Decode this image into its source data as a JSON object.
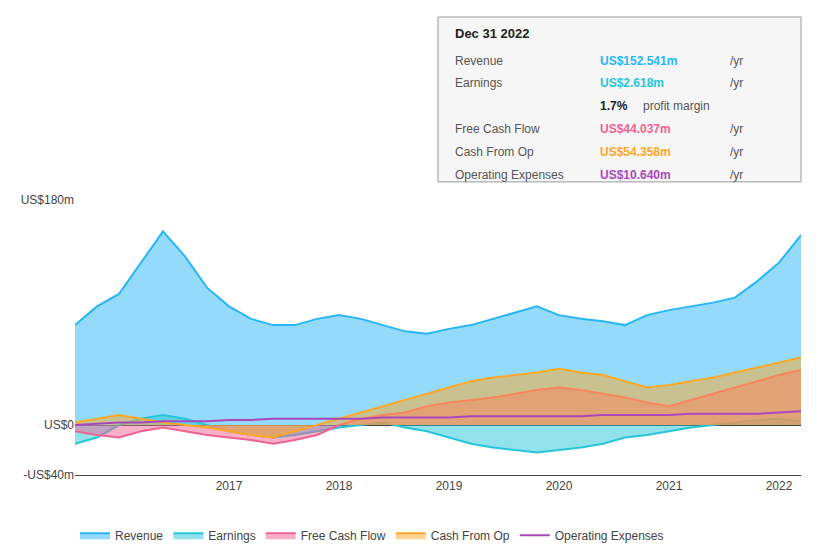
{
  "chart_data": {
    "type": "line",
    "categories": [
      null,
      null,
      null,
      null,
      null,
      null,
      null,
      "2017",
      null,
      null,
      null,
      null,
      "2018",
      null,
      null,
      null,
      null,
      "2019",
      null,
      null,
      null,
      null,
      "2020",
      null,
      null,
      null,
      null,
      "2021",
      null,
      null,
      null,
      null,
      "2022",
      null
    ],
    "series": [
      {
        "name": "Revenue",
        "color": "#29b6f6",
        "type": "area",
        "values": [
          80,
          95,
          105,
          130,
          155,
          135,
          110,
          95,
          85,
          80,
          80,
          85,
          88,
          85,
          80,
          75,
          73,
          77,
          80,
          85,
          90,
          95,
          88,
          85,
          83,
          80,
          88,
          92,
          95,
          98,
          102,
          115,
          130,
          152
        ]
      },
      {
        "name": "Earnings",
        "color": "#26c6da",
        "type": "area",
        "values": [
          -15,
          -10,
          0,
          5,
          8,
          5,
          0,
          -5,
          -8,
          -10,
          -8,
          -5,
          -2,
          0,
          2,
          -2,
          -5,
          -10,
          -15,
          -18,
          -20,
          -22,
          -20,
          -18,
          -15,
          -10,
          -8,
          -5,
          -2,
          0,
          2,
          4,
          5,
          3
        ]
      },
      {
        "name": "Free Cash Flow",
        "color": "#f06292",
        "type": "area",
        "values": [
          -5,
          -8,
          -10,
          -5,
          -2,
          -5,
          -8,
          -10,
          -12,
          -15,
          -12,
          -8,
          0,
          5,
          8,
          10,
          15,
          18,
          20,
          22,
          25,
          28,
          30,
          28,
          25,
          22,
          18,
          15,
          20,
          25,
          30,
          35,
          40,
          44
        ]
      },
      {
        "name": "Cash From Op",
        "color": "#ffa726",
        "type": "area",
        "values": [
          2,
          5,
          8,
          5,
          2,
          0,
          -2,
          -5,
          -8,
          -10,
          -5,
          0,
          5,
          10,
          15,
          20,
          25,
          30,
          35,
          38,
          40,
          42,
          45,
          42,
          40,
          35,
          30,
          32,
          35,
          38,
          42,
          46,
          50,
          54
        ]
      },
      {
        "name": "Operating Expenses",
        "color": "#ab47bc",
        "type": "line",
        "values": [
          0,
          1,
          2,
          2,
          3,
          3,
          3,
          4,
          4,
          5,
          5,
          5,
          5,
          5,
          6,
          6,
          6,
          6,
          7,
          7,
          7,
          7,
          7,
          7,
          8,
          8,
          8,
          8,
          9,
          9,
          9,
          9,
          10,
          11
        ]
      }
    ],
    "ylim": [
      -40,
      180
    ],
    "yticks": [
      {
        "value": 180,
        "label": "US$180m"
      },
      {
        "value": 0,
        "label": "US$0"
      },
      {
        "value": -40,
        "label": "-US$40m"
      }
    ],
    "grid": true,
    "legend": "bottom",
    "annotations": [
      {
        "text": "Dec 31 2022"
      },
      {
        "label": "Revenue",
        "text": "US$152.541m",
        "unit": "/yr",
        "color": "#29b6f6"
      },
      {
        "label": "Earnings",
        "text": "US$2.618m",
        "unit": "/yr",
        "color": "#26c6da"
      },
      {
        "text": "1.7%",
        "unit": "profit margin"
      },
      {
        "label": "Free Cash Flow",
        "text": "US$44.037m",
        "unit": "/yr",
        "color": "#f06292"
      },
      {
        "label": "Cash From Op",
        "text": "US$54.358m",
        "unit": "/yr",
        "color": "#ffa726"
      },
      {
        "label": "Operating Expenses",
        "text": "US$10.640m",
        "unit": "/yr",
        "color": "#ab47bc"
      }
    ]
  }
}
